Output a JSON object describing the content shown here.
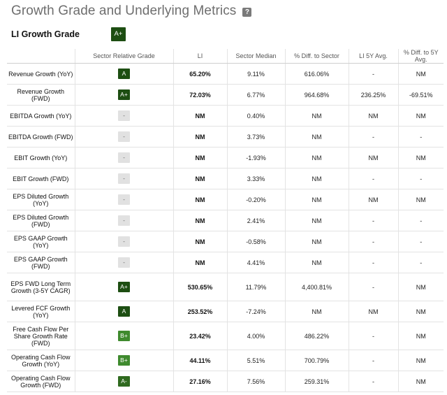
{
  "page": {
    "title": "Growth Grade and Underlying Metrics",
    "help_icon": "?"
  },
  "summary": {
    "title": "LI Growth Grade",
    "grade": "A+"
  },
  "colors": {
    "grade_dark_green": "#1d4e12",
    "grade_mid_green": "#3f8a2e",
    "grade_neutral": "#e1e1e1"
  },
  "table": {
    "columns": [
      "",
      "Sector Relative Grade",
      "LI",
      "Sector Median",
      "% Diff. to Sector",
      "LI 5Y Avg.",
      "% Diff. to 5Y Avg."
    ],
    "rows": [
      {
        "metric": "Revenue Growth (YoY)",
        "grade": "A",
        "li": "65.20%",
        "median": "9.11%",
        "diff": "616.06%",
        "avg5y": "-",
        "diff5y": "NM"
      },
      {
        "metric": "Revenue Growth (FWD)",
        "grade": "A+",
        "li": "72.03%",
        "median": "6.77%",
        "diff": "964.68%",
        "avg5y": "236.25%",
        "diff5y": "-69.51%"
      },
      {
        "metric": "EBITDA Growth (YoY)",
        "grade": "-",
        "li": "NM",
        "median": "0.40%",
        "diff": "NM",
        "avg5y": "NM",
        "diff5y": "NM"
      },
      {
        "metric": "EBITDA Growth (FWD)",
        "grade": "-",
        "li": "NM",
        "median": "3.73%",
        "diff": "NM",
        "avg5y": "-",
        "diff5y": "-"
      },
      {
        "metric": "EBIT Growth (YoY)",
        "grade": "-",
        "li": "NM",
        "median": "-1.93%",
        "diff": "NM",
        "avg5y": "NM",
        "diff5y": "NM"
      },
      {
        "metric": "EBIT Growth (FWD)",
        "grade": "-",
        "li": "NM",
        "median": "3.33%",
        "diff": "NM",
        "avg5y": "-",
        "diff5y": "-"
      },
      {
        "metric": "EPS Diluted Growth (YoY)",
        "grade": "-",
        "li": "NM",
        "median": "-0.20%",
        "diff": "NM",
        "avg5y": "NM",
        "diff5y": "NM"
      },
      {
        "metric": "EPS Diluted Growth (FWD)",
        "grade": "-",
        "li": "NM",
        "median": "2.41%",
        "diff": "NM",
        "avg5y": "-",
        "diff5y": "-"
      },
      {
        "metric": "EPS GAAP Growth (YoY)",
        "grade": "-",
        "li": "NM",
        "median": "-0.58%",
        "diff": "NM",
        "avg5y": "-",
        "diff5y": "-"
      },
      {
        "metric": "EPS GAAP Growth (FWD)",
        "grade": "-",
        "li": "NM",
        "median": "4.41%",
        "diff": "NM",
        "avg5y": "-",
        "diff5y": "-"
      },
      {
        "metric": "EPS FWD Long Term Growth (3-5Y CAGR)",
        "grade": "A+",
        "li": "530.65%",
        "median": "11.79%",
        "diff": "4,400.81%",
        "avg5y": "-",
        "diff5y": "NM"
      },
      {
        "metric": "Levered FCF Growth (YoY)",
        "grade": "A",
        "li": "253.52%",
        "median": "-7.24%",
        "diff": "NM",
        "avg5y": "NM",
        "diff5y": "NM"
      },
      {
        "metric": "Free Cash Flow Per Share Growth Rate (FWD)",
        "grade": "B+",
        "li": "23.42%",
        "median": "4.00%",
        "diff": "486.22%",
        "avg5y": "-",
        "diff5y": "NM"
      },
      {
        "metric": "Operating Cash Flow Growth (YoY)",
        "grade": "B+",
        "li": "44.11%",
        "median": "5.51%",
        "diff": "700.79%",
        "avg5y": "-",
        "diff5y": "NM"
      },
      {
        "metric": "Operating Cash Flow Growth (FWD)",
        "grade": "A-",
        "li": "27.16%",
        "median": "7.56%",
        "diff": "259.31%",
        "avg5y": "-",
        "diff5y": "NM"
      }
    ]
  }
}
